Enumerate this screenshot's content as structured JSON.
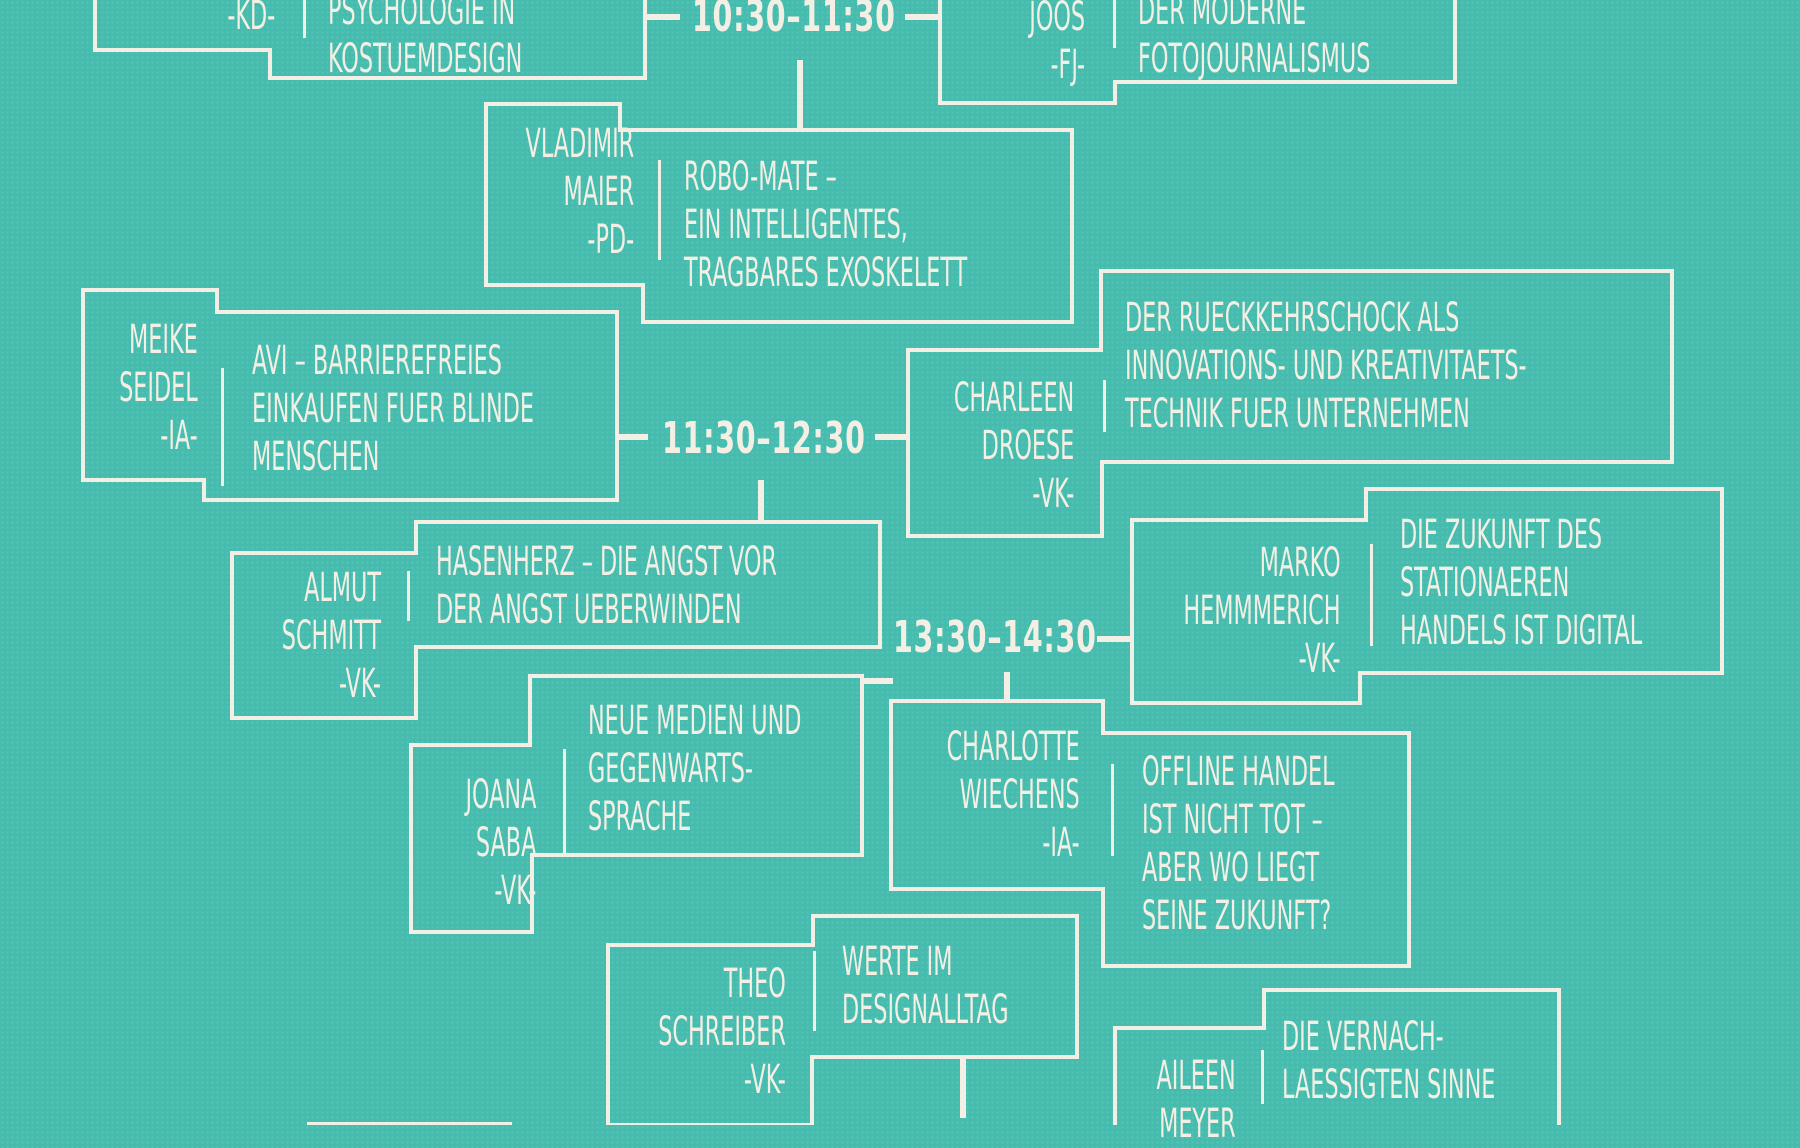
{
  "times": {
    "t1": "10:30–11:30",
    "t2": "11:30–12:30",
    "t3": "13:30–14:30"
  },
  "sessions": {
    "kd": {
      "speaker_code": "-KD-",
      "title": [
        "PSYCHOLOGIE IN",
        "KOSTUEMDESIGN"
      ]
    },
    "fj": {
      "speaker": [
        "JOOS",
        "-FJ-"
      ],
      "title": [
        "DER MODERNE",
        "FOTOJOURNALISMUS"
      ]
    },
    "pd": {
      "speaker": [
        "VLADIMIR",
        "MAIER",
        "-PD-"
      ],
      "title": [
        "ROBO-MATE –",
        "EIN INTELLIGENTES,",
        "TRAGBARES EXOSKELETT"
      ]
    },
    "ia1": {
      "speaker": [
        "MEIKE",
        "SEIDEL",
        "-IA-"
      ],
      "title": [
        "AVI – BARRIEREFREIES",
        "EINKAUFEN FUER BLINDE",
        "MENSCHEN"
      ]
    },
    "vk1": {
      "speaker": [
        "CHARLEEN",
        "DROESE",
        "-VK-"
      ],
      "title": [
        "DER RUECKKEHRSCHOCK ALS",
        "INNOVATIONS- UND KREATIVITAETS-",
        "TECHNIK FUER UNTERNEHMEN"
      ]
    },
    "vk2": {
      "speaker": [
        "ALMUT",
        "SCHMITT",
        "-VK-"
      ],
      "title": [
        "HASENHERZ – DIE ANGST VOR",
        "DER ANGST UEBERWINDEN"
      ]
    },
    "vk3": {
      "speaker": [
        "MARKO",
        "HEMMMERICH",
        "-VK-"
      ],
      "title": [
        "DIE ZUKUNFT DES",
        "STATIONAEREN",
        "HANDELS IST DIGITAL"
      ]
    },
    "vk4": {
      "speaker": [
        "JOANA",
        "SABA",
        "-VK-"
      ],
      "title": [
        "NEUE MEDIEN UND",
        "GEGENWARTS-",
        "SPRACHE"
      ]
    },
    "ia2": {
      "speaker": [
        "CHARLOTTE",
        "WIECHENS",
        "-IA-"
      ],
      "title": [
        "OFFLINE HANDEL",
        "IST NICHT TOT –",
        "ABER WO LIEGT",
        "SEINE ZUKUNFT?"
      ]
    },
    "vk5": {
      "speaker": [
        "THEO",
        "SCHREIBER",
        "-VK-"
      ],
      "title": [
        "WERTE IM",
        "DESIGNALLTAG"
      ]
    },
    "last": {
      "speaker": [
        "AILEEN",
        "MEYER"
      ],
      "title": [
        "DIE VERNACH-",
        "LAESSIGTEN SINNE"
      ]
    }
  }
}
